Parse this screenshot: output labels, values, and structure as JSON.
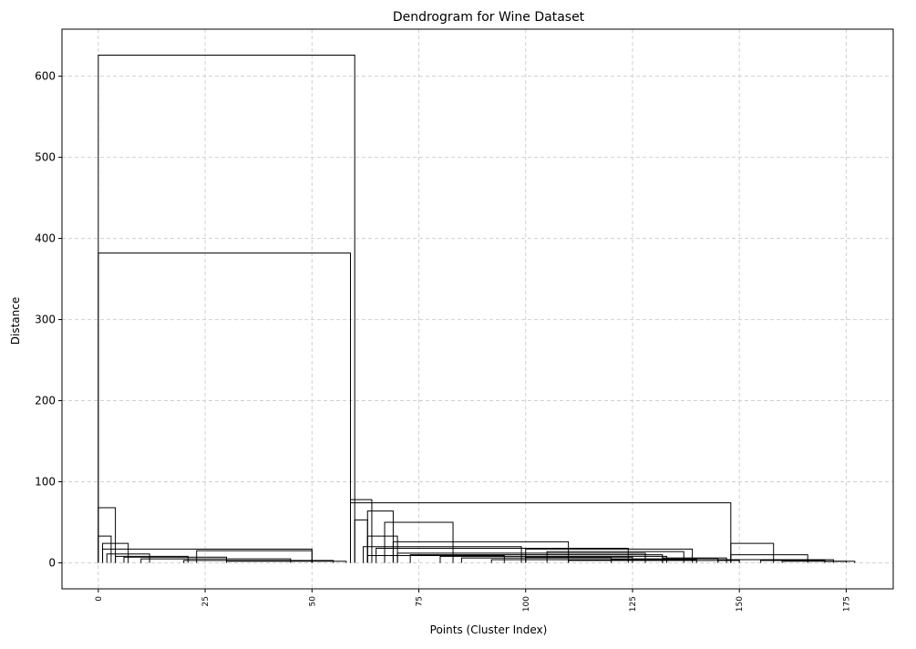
{
  "chart_data": {
    "type": "dendrogram",
    "title": "Dendrogram for Wine Dataset",
    "xlabel": "Points (Cluster Index)",
    "ylabel": "Distance",
    "xlim": [
      -8.5,
      186
    ],
    "ylim": [
      -32,
      658
    ],
    "x_ticks": [
      0,
      25,
      50,
      75,
      100,
      125,
      150,
      175
    ],
    "y_ticks": [
      0,
      100,
      200,
      300,
      400,
      500,
      600
    ],
    "grid": true,
    "grid_style": "dashed",
    "link_color": "#000000",
    "grid_color": "#d0d0d0",
    "links": [
      {
        "x1": 0,
        "x2": 60,
        "height": 626
      },
      {
        "x1": 0,
        "x2": 59,
        "height": 382
      },
      {
        "x1": 0,
        "x2": 4,
        "height": 68
      },
      {
        "x1": 59,
        "x2": 148,
        "height": 74
      },
      {
        "x1": 59,
        "x2": 64,
        "height": 78
      },
      {
        "x1": 60,
        "x2": 63,
        "height": 53
      },
      {
        "x1": 63,
        "x2": 69,
        "height": 64
      },
      {
        "x1": 67,
        "x2": 83,
        "height": 50
      },
      {
        "x1": 69,
        "x2": 110,
        "height": 26
      },
      {
        "x1": 63,
        "x2": 70,
        "height": 33
      },
      {
        "x1": 148,
        "x2": 158,
        "height": 24
      },
      {
        "x1": 0,
        "x2": 3,
        "height": 33
      },
      {
        "x1": 1,
        "x2": 7,
        "height": 24
      },
      {
        "x1": 1,
        "x2": 50,
        "height": 17
      },
      {
        "x1": 23,
        "x2": 50,
        "height": 15
      },
      {
        "x1": 62,
        "x2": 99,
        "height": 20
      },
      {
        "x1": 65,
        "x2": 124,
        "height": 18
      },
      {
        "x1": 100,
        "x2": 139,
        "height": 17
      },
      {
        "x1": 105,
        "x2": 137,
        "height": 14
      },
      {
        "x1": 148,
        "x2": 166,
        "height": 10
      },
      {
        "x1": 2,
        "x2": 12,
        "height": 11
      },
      {
        "x1": 4,
        "x2": 21,
        "height": 8
      },
      {
        "x1": 70,
        "x2": 128,
        "height": 12
      },
      {
        "x1": 73,
        "x2": 132,
        "height": 10
      },
      {
        "x1": 80,
        "x2": 133,
        "height": 8
      },
      {
        "x1": 132,
        "x2": 147,
        "height": 6
      },
      {
        "x1": 145,
        "x2": 172,
        "height": 4
      },
      {
        "x1": 170,
        "x2": 177,
        "height": 2
      },
      {
        "x1": 10,
        "x2": 45,
        "height": 5
      },
      {
        "x1": 20,
        "x2": 55,
        "height": 3
      },
      {
        "x1": 30,
        "x2": 58,
        "height": 2
      },
      {
        "x1": 85,
        "x2": 120,
        "height": 6
      },
      {
        "x1": 92,
        "x2": 140,
        "height": 4
      },
      {
        "x1": 110,
        "x2": 150,
        "height": 3
      },
      {
        "x1": 155,
        "x2": 170,
        "height": 3
      },
      {
        "x1": 160,
        "x2": 175,
        "height": 2
      },
      {
        "x1": 6,
        "x2": 30,
        "height": 7
      },
      {
        "x1": 63,
        "x2": 95,
        "height": 9
      },
      {
        "x1": 100,
        "x2": 125,
        "height": 7
      },
      {
        "x1": 120,
        "x2": 145,
        "height": 5
      }
    ]
  }
}
